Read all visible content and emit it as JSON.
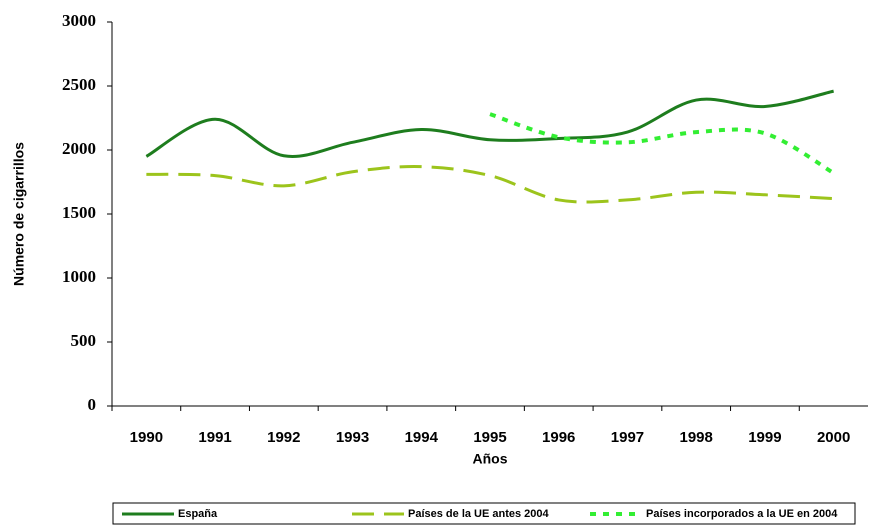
{
  "chart_data": {
    "type": "line",
    "categories": [
      "1990",
      "1991",
      "1992",
      "1993",
      "1994",
      "1995",
      "1996",
      "1997",
      "1998",
      "1999",
      "2000"
    ],
    "xlabel": "Años",
    "ylabel": "Número de cigarrillos",
    "ylim": [
      0,
      3000
    ],
    "yticks": [
      0,
      500,
      1000,
      1500,
      2000,
      2500,
      3000
    ],
    "legend": "bottom",
    "series": [
      {
        "name": "España",
        "color": "#1e7d1e",
        "style": "solid",
        "values": [
          1950,
          2240,
          1955,
          2060,
          2160,
          2080,
          2090,
          2140,
          2390,
          2340,
          2460
        ]
      },
      {
        "name": "Países de la UE antes 2004",
        "color": "#9cc41c",
        "style": "dashed",
        "values": [
          1810,
          1800,
          1720,
          1830,
          1870,
          1800,
          1610,
          1610,
          1670,
          1650,
          1620
        ]
      },
      {
        "name": "Países incorporados a la UE en 2004",
        "color": "#33ee33",
        "style": "dotted",
        "values": [
          null,
          null,
          null,
          null,
          null,
          2280,
          2100,
          2060,
          2140,
          2130,
          1820
        ]
      }
    ]
  }
}
